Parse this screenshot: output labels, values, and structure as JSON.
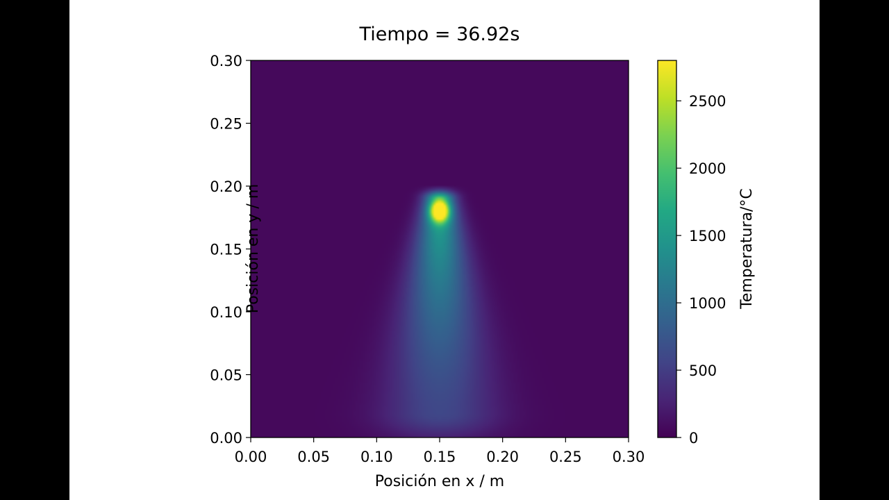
{
  "chart_data": {
    "type": "heatmap",
    "title": "Tiempo = 36.92s",
    "xlabel": "Posición en x / m",
    "ylabel": "Posición en y / m",
    "xlim": [
      0.0,
      0.3
    ],
    "ylim": [
      0.0,
      0.3
    ],
    "xticks": [
      "0.00",
      "0.05",
      "0.10",
      "0.15",
      "0.20",
      "0.25",
      "0.30"
    ],
    "yticks": [
      "0.00",
      "0.05",
      "0.10",
      "0.15",
      "0.20",
      "0.25",
      "0.30"
    ],
    "colormap": "viridis",
    "colorbar": {
      "label": "Temperatura/°C",
      "range": [
        0,
        2800
      ],
      "ticks": [
        "0",
        "500",
        "1000",
        "1500",
        "2000",
        "2500"
      ]
    },
    "field": {
      "ambient_temperature": 60,
      "hot_spot": {
        "x": 0.15,
        "y": 0.18,
        "temperature": 2650
      },
      "plume": {
        "x_center": 0.15,
        "y_base": 0.02,
        "y_top": 0.19,
        "base_temperature": 600,
        "top_temperature": 1700
      }
    },
    "grid": false
  }
}
